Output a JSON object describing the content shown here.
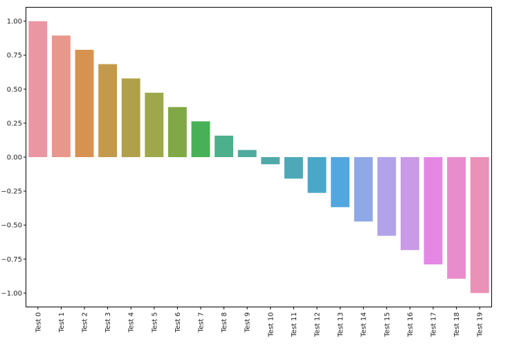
{
  "chart_data": {
    "type": "bar",
    "title": "",
    "xlabel": "",
    "ylabel": "",
    "categories": [
      "Test 0",
      "Test 1",
      "Test 2",
      "Test 3",
      "Test 4",
      "Test 5",
      "Test 6",
      "Test 7",
      "Test 8",
      "Test 9",
      "Test 10",
      "Test 11",
      "Test 12",
      "Test 13",
      "Test 14",
      "Test 15",
      "Test 16",
      "Test 17",
      "Test 18",
      "Test 19"
    ],
    "values": [
      1.0,
      0.8947,
      0.7895,
      0.6842,
      0.5789,
      0.4737,
      0.3684,
      0.2632,
      0.1579,
      0.0526,
      -0.0526,
      -0.1579,
      -0.2632,
      -0.3684,
      -0.4737,
      -0.5789,
      -0.6842,
      -0.7895,
      -0.8947,
      -1.0
    ],
    "colors": [
      "#ea96a3",
      "#e8978c",
      "#d8924f",
      "#c39a4d",
      "#b0a04a",
      "#9ea84a",
      "#80a846",
      "#48b056",
      "#4db08d",
      "#4eab9d",
      "#50a9a9",
      "#4ea8b8",
      "#4ba7c8",
      "#52a7e0",
      "#8fa9e6",
      "#b2a2ea",
      "#c99ae6",
      "#e488e4",
      "#e88ccd",
      "#e991b6"
    ],
    "yticks": [
      1.0,
      0.75,
      0.5,
      0.25,
      0.0,
      -0.25,
      -0.5,
      -0.75,
      -1.0
    ],
    "ytick_labels": [
      "1.00",
      "0.75",
      "0.50",
      "0.25",
      "0.00",
      "−0.25",
      "−0.50",
      "−0.75",
      "−1.00"
    ],
    "ylim": [
      -1.1,
      1.1
    ],
    "grid": false,
    "legend": "none"
  }
}
